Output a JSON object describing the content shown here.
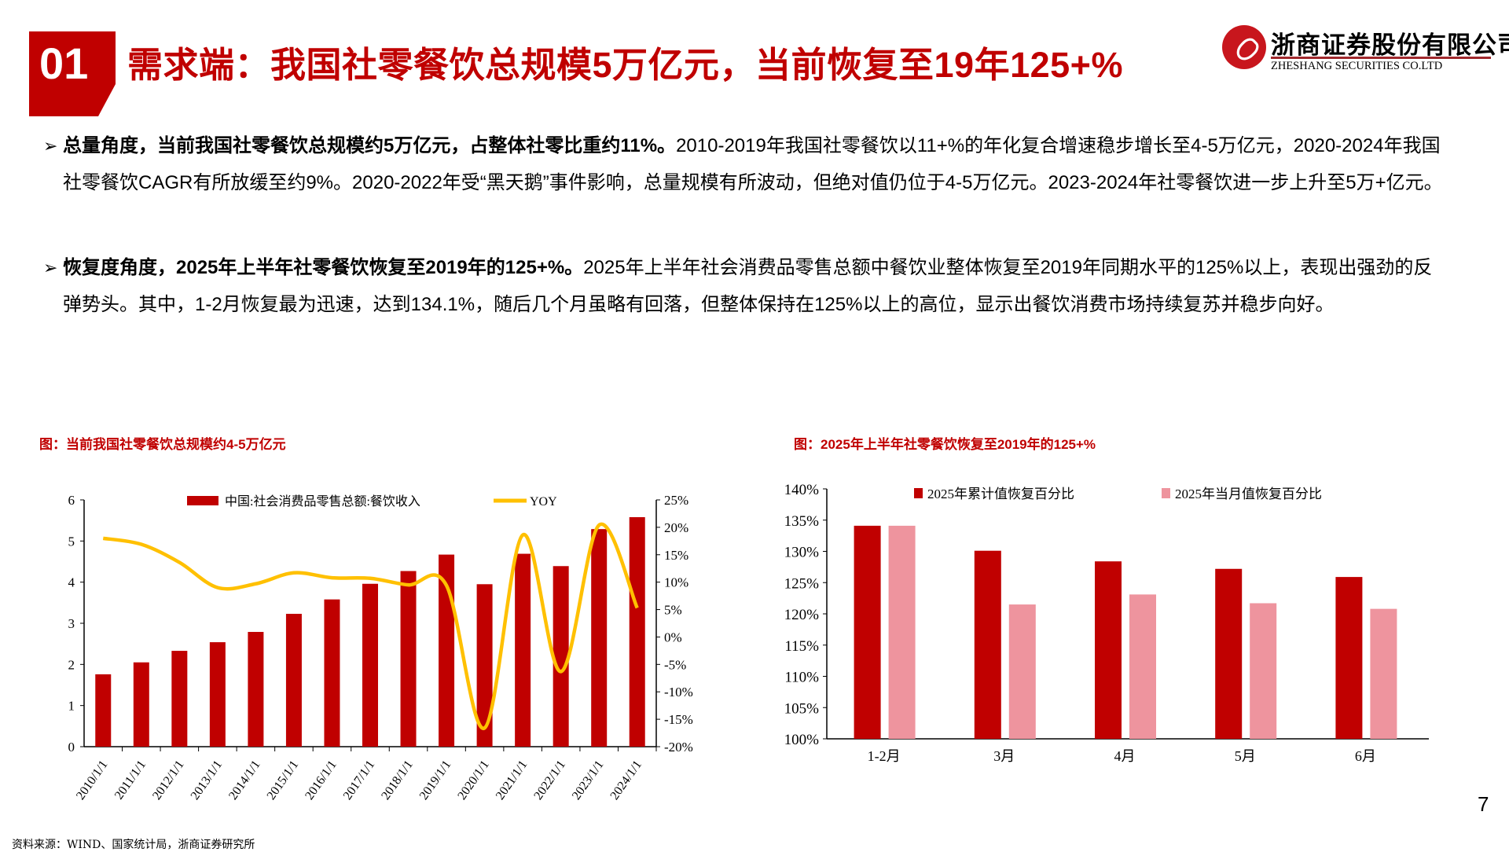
{
  "header": {
    "badge": "01",
    "title": "需求端：我国社零餐饮总规模5万亿元，当前恢复至19年125+%"
  },
  "logo": {
    "name_cn": "浙商证券股份有限公司",
    "name_en": "ZHESHANG SECURITIES CO.LTD"
  },
  "paragraphs": [
    {
      "bold": "总量角度，当前我国社零餐饮总规模约5万亿元，占整体社零比重约11%。",
      "text": "2010-2019年我国社零餐饮以11+%的年化复合增速稳步增长至4-5万亿元，2020-2024年我国社零餐饮CAGR有所放缓至约9%。2020-2022年受“黑天鹅”事件影响，总量规模有所波动，但绝对值仍位于4-5万亿元。2023-2024年社零餐饮进一步上升至5万+亿元。"
    },
    {
      "bold": "恢复度角度，2025年上半年社零餐饮恢复至2019年的125+%。",
      "text": "2025年上半年社会消费品零售总额中餐饮业整体恢复至2019年同期水平的125%以上，表现出强劲的反弹势头。其中，1-2月恢复最为迅速，达到134.1%，随后几个月虽略有回落，但整体保持在125%以上的高位，显示出餐饮消费市场持续复苏并稳步向好。"
    }
  ],
  "source": "资料来源：WIND、国家统计局，浙商证券研究所",
  "page_number": "7",
  "colors": {
    "red": "#C00000",
    "pink": "#EE949E",
    "yellow": "#FFC000"
  },
  "chart_data": [
    {
      "type": "bar",
      "title": "图：当前我国社零餐饮总规模约4-5万亿元",
      "categories": [
        "2010/1/1",
        "2011/1/1",
        "2012/1/1",
        "2013/1/1",
        "2014/1/1",
        "2015/1/1",
        "2016/1/1",
        "2017/1/1",
        "2018/1/1",
        "2019/1/1",
        "2020/1/1",
        "2021/1/1",
        "2022/1/1",
        "2023/1/1",
        "2024/1/1"
      ],
      "series": [
        {
          "name": "中国:社会消费品零售总额:餐饮收入",
          "type": "bar",
          "axis": "left",
          "values": [
            1.76,
            2.05,
            2.33,
            2.54,
            2.79,
            3.23,
            3.58,
            3.96,
            4.27,
            4.67,
            3.95,
            4.69,
            4.39,
            5.29,
            5.58
          ]
        },
        {
          "name": "YOY",
          "type": "line",
          "axis": "right",
          "values": [
            18.0,
            16.9,
            13.6,
            9.0,
            9.7,
            11.7,
            10.8,
            10.7,
            9.5,
            9.4,
            -16.6,
            18.6,
            -6.3,
            20.4,
            5.3
          ]
        }
      ],
      "ylim": [
        0,
        6
      ],
      "yticks": [
        "0",
        "1",
        "2",
        "3",
        "4",
        "5",
        "6"
      ],
      "y2lim": [
        -20,
        25
      ],
      "y2ticks": [
        "-20%",
        "-15%",
        "-10%",
        "-5%",
        "0%",
        "5%",
        "10%",
        "15%",
        "20%",
        "25%"
      ],
      "legend": "top"
    },
    {
      "type": "bar",
      "title": "图：2025年上半年社零餐饮恢复至2019年的125+%",
      "categories": [
        "1-2月",
        "3月",
        "4月",
        "5月",
        "6月"
      ],
      "series": [
        {
          "name": "2025年累计值恢复百分比",
          "values": [
            134.1,
            130.1,
            128.4,
            127.2,
            125.9
          ]
        },
        {
          "name": "2025年当月值恢复百分比",
          "values": [
            134.1,
            121.5,
            123.1,
            121.7,
            120.8
          ]
        }
      ],
      "ylim": [
        100,
        140
      ],
      "yticks": [
        "100%",
        "105%",
        "110%",
        "115%",
        "120%",
        "125%",
        "130%",
        "135%",
        "140%"
      ],
      "legend": "top"
    }
  ]
}
